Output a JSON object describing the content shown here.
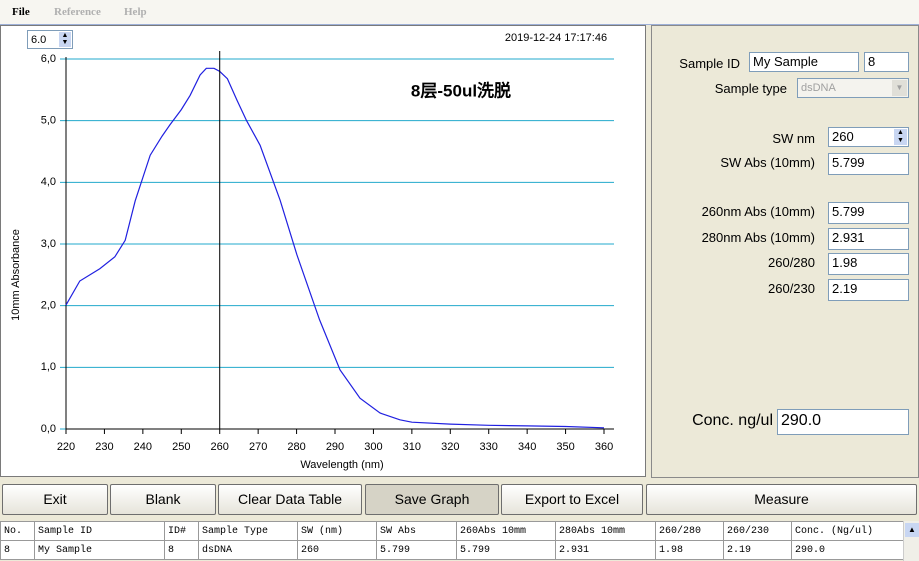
{
  "menu": [
    "File",
    "Reference",
    "Help"
  ],
  "chart_data": {
    "type": "line",
    "spin": "6.0",
    "timestamp": "2019-12-24 17:17:46",
    "annotation": "8层-50ul洗脱",
    "x_label": "Wavelength (nm)",
    "y_label": "10mm Absorbance",
    "x": [
      220,
      223.6,
      228.8,
      232.7,
      235.4,
      238,
      241.9,
      245,
      247,
      250,
      252.3,
      254.9,
      256.5,
      258.5,
      260,
      262,
      264.5,
      267,
      270.5,
      275.7,
      280.1,
      286,
      291.3,
      296.5,
      301.7,
      306.9,
      310,
      320,
      330,
      340,
      350,
      360
    ],
    "values": [
      2.01,
      2.4,
      2.6,
      2.79,
      3.06,
      3.7,
      4.44,
      4.75,
      4.93,
      5.18,
      5.41,
      5.74,
      5.85,
      5.85,
      5.799,
      5.68,
      5.33,
      5.0,
      4.6,
      3.71,
      2.82,
      1.77,
      0.96,
      0.5,
      0.26,
      0.15,
      0.11,
      0.08,
      0.06,
      0.05,
      0.04,
      0.02
    ],
    "color": "#2020e0",
    "cursor": 260,
    "grid": true,
    "grid_color": "#22aacc",
    "xlim": [
      220,
      362.6
    ],
    "ylim": [
      0,
      6
    ],
    "xticks": [
      220,
      230,
      240,
      250,
      260,
      270,
      280,
      290,
      300,
      310,
      320,
      330,
      340,
      350,
      360
    ],
    "yticks": [
      {
        "value": 0,
        "label": "0,0"
      },
      {
        "value": 1,
        "label": "1,0"
      },
      {
        "value": 2,
        "label": "2,0"
      },
      {
        "value": 3,
        "label": "3,0"
      },
      {
        "value": 4,
        "label": "4,0"
      },
      {
        "value": 5,
        "label": "5,0"
      },
      {
        "value": 6,
        "label": "6,0"
      }
    ]
  },
  "panel": {
    "sample_id_label": "Sample ID",
    "sample_id": "My Sample",
    "sample_no": "8",
    "sample_type_label": "Sample type",
    "sample_type": "dsDNA",
    "sw_label": "SW nm",
    "sw": "260",
    "sw_abs_label": "SW Abs (10mm)",
    "sw_abs": "5.799",
    "readings": [
      {
        "label": "260nm Abs (10mm)",
        "value": "5.799"
      },
      {
        "label": "280nm Abs (10mm)",
        "value": "2.931"
      },
      {
        "label": "260/280",
        "value": "1.98"
      },
      {
        "label": "260/230",
        "value": "2.19"
      }
    ],
    "conc_label": "Conc. ng/ul",
    "conc": "290.0"
  },
  "buttons": [
    "Exit",
    "Blank",
    "Clear Data Table",
    "Save Graph",
    "Export to Excel",
    "Measure"
  ],
  "table": {
    "header": [
      "No.",
      "Sample ID",
      "ID#",
      "Sample Type",
      "SW (nm)",
      "SW Abs",
      "260Abs 10mm",
      "280Abs 10mm",
      "260/280",
      "260/230",
      "Conc. (Ng/ul)"
    ],
    "rows": [
      [
        "8",
        "My Sample",
        "8",
        "dsDNA",
        "260",
        "5.799",
        "5.799",
        "2.931",
        "1.98",
        "2.19",
        "290.0"
      ]
    ]
  }
}
